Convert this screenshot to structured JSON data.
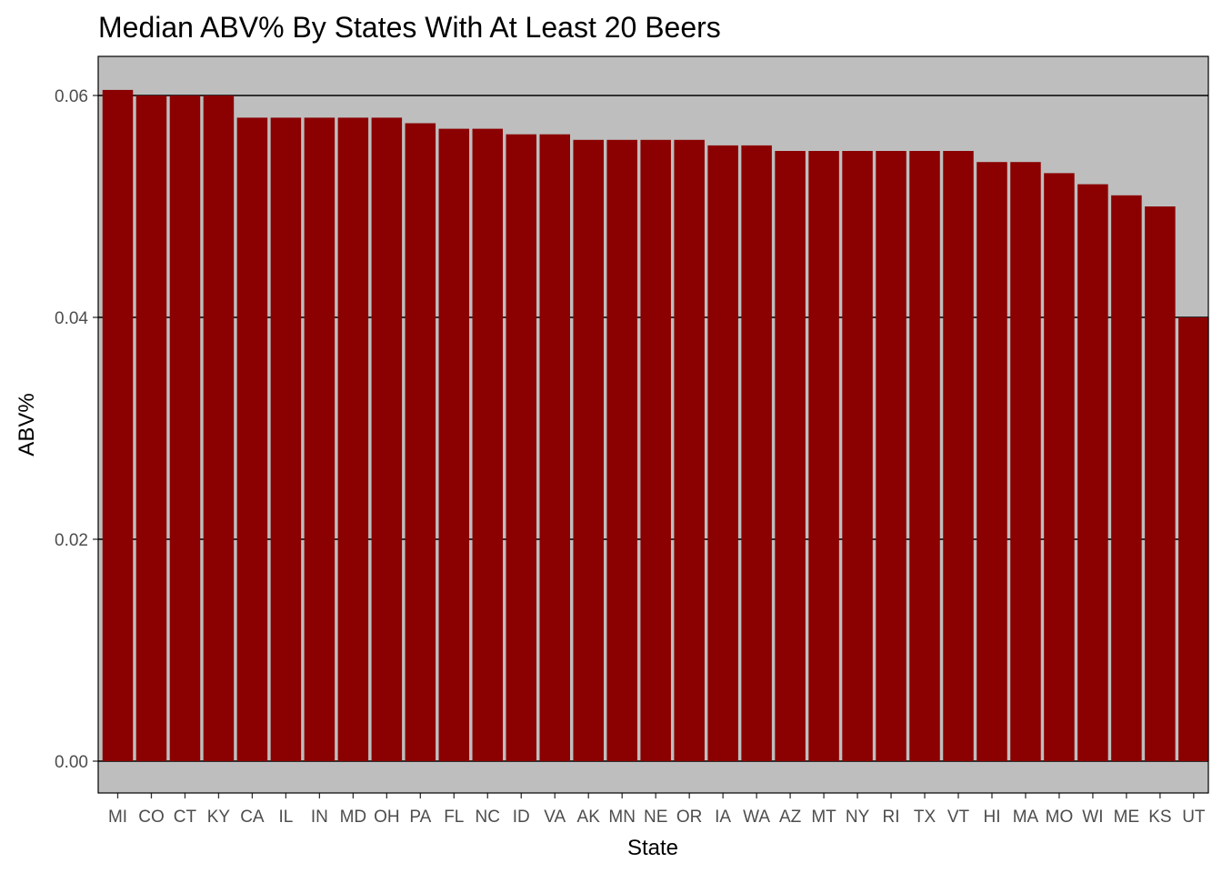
{
  "chart_data": {
    "type": "bar",
    "title": "Median ABV% By States With At Least 20 Beers",
    "xlabel": "State",
    "ylabel": "ABV%",
    "categories": [
      "MI",
      "CO",
      "CT",
      "KY",
      "CA",
      "IL",
      "IN",
      "MD",
      "OH",
      "PA",
      "FL",
      "NC",
      "ID",
      "VA",
      "AK",
      "MN",
      "NE",
      "OR",
      "IA",
      "WA",
      "AZ",
      "MT",
      "NY",
      "RI",
      "TX",
      "VT",
      "HI",
      "MA",
      "MO",
      "WI",
      "ME",
      "KS",
      "UT"
    ],
    "values": [
      0.0605,
      0.06,
      0.06,
      0.06,
      0.058,
      0.058,
      0.058,
      0.058,
      0.058,
      0.0575,
      0.057,
      0.057,
      0.0565,
      0.0565,
      0.056,
      0.056,
      0.056,
      0.056,
      0.0555,
      0.0555,
      0.055,
      0.055,
      0.055,
      0.055,
      0.055,
      0.055,
      0.054,
      0.054,
      0.053,
      0.052,
      0.051,
      0.05,
      0.04
    ],
    "yticks": [
      0.0,
      0.02,
      0.04,
      0.06
    ],
    "ytick_labels": [
      "0.00",
      "0.02",
      "0.04",
      "0.06"
    ],
    "ylim": [
      -0.003,
      0.0635
    ],
    "grid": true,
    "colors": {
      "bar": "#8b0000",
      "panel_background": "#bebebe",
      "gridline": "#000000",
      "tick_label": "#4d4d4d"
    }
  }
}
